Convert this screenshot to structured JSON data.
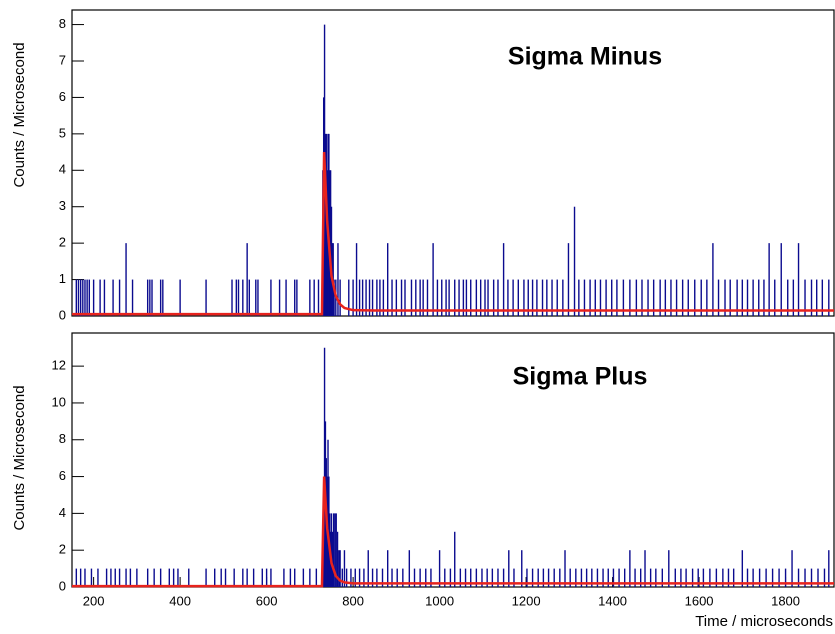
{
  "chart_data": [
    {
      "type": "bar",
      "title": "Sigma Minus",
      "y_label": "Counts / Microsecond",
      "xlim": [
        150,
        1912
      ],
      "ylim": [
        0,
        8.4
      ],
      "yticks": [
        0,
        1,
        2,
        3,
        4,
        5,
        6,
        7,
        8
      ],
      "color": "#0b0b8f",
      "x": [
        160,
        165,
        170,
        175,
        180,
        185,
        190,
        200,
        215,
        225,
        245,
        260,
        275,
        290,
        325,
        330,
        335,
        355,
        360,
        400,
        460,
        520,
        530,
        535,
        545,
        555,
        560,
        575,
        580,
        610,
        630,
        645,
        665,
        670,
        700,
        710,
        720,
        730,
        732,
        734,
        736,
        738,
        740,
        742,
        744,
        746,
        748,
        750,
        752,
        754,
        756,
        760,
        765,
        770,
        790,
        800,
        808,
        815,
        822,
        830,
        838,
        845,
        855,
        862,
        870,
        880,
        890,
        900,
        912,
        920,
        935,
        945,
        955,
        962,
        972,
        985,
        995,
        1005,
        1015,
        1022,
        1035,
        1045,
        1055,
        1062,
        1072,
        1085,
        1095,
        1105,
        1112,
        1125,
        1135,
        1148,
        1158,
        1170,
        1182,
        1195,
        1205,
        1215,
        1225,
        1238,
        1248,
        1260,
        1272,
        1285,
        1298,
        1312,
        1322,
        1335,
        1348,
        1360,
        1372,
        1385,
        1398,
        1410,
        1425,
        1440,
        1455,
        1468,
        1482,
        1495,
        1510,
        1522,
        1535,
        1548,
        1562,
        1575,
        1590,
        1605,
        1618,
        1632,
        1645,
        1660,
        1672,
        1688,
        1700,
        1712,
        1725,
        1738,
        1750,
        1762,
        1775,
        1790,
        1805,
        1818,
        1830,
        1845,
        1860,
        1872,
        1885,
        1900
      ],
      "values": [
        1,
        1,
        1,
        1,
        1,
        1,
        1,
        1,
        1,
        1,
        1,
        1,
        2,
        1,
        1,
        1,
        1,
        1,
        1,
        1,
        1,
        1,
        1,
        1,
        1,
        2,
        1,
        1,
        1,
        1,
        1,
        1,
        1,
        1,
        1,
        1,
        1,
        4,
        6,
        8,
        5,
        5,
        4,
        5,
        5,
        4,
        4,
        3,
        2,
        2,
        1,
        1,
        2,
        1,
        1,
        1,
        2,
        1,
        1,
        1,
        1,
        1,
        1,
        1,
        1,
        2,
        1,
        1,
        1,
        1,
        1,
        1,
        1,
        1,
        1,
        2,
        1,
        1,
        1,
        1,
        1,
        1,
        1,
        1,
        1,
        1,
        1,
        1,
        1,
        1,
        1,
        2,
        1,
        1,
        1,
        1,
        1,
        1,
        1,
        1,
        1,
        1,
        1,
        1,
        2,
        3,
        1,
        1,
        1,
        1,
        1,
        1,
        1,
        1,
        1,
        1,
        1,
        1,
        1,
        1,
        1,
        1,
        1,
        1,
        1,
        1,
        1,
        1,
        1,
        2,
        1,
        1,
        1,
        1,
        1,
        1,
        1,
        1,
        1,
        2,
        1,
        2,
        1,
        1,
        2,
        1,
        1,
        1,
        1,
        1
      ],
      "fit": {
        "color": "#e8231d",
        "x": [
          150,
          727,
          728,
          733,
          740,
          750,
          760,
          770,
          780,
          800,
          850,
          1000,
          1912
        ],
        "values": [
          0.05,
          0.05,
          0.05,
          4.5,
          2.6,
          1.1,
          0.55,
          0.32,
          0.22,
          0.16,
          0.15,
          0.15,
          0.15
        ]
      }
    },
    {
      "type": "bar",
      "title": "Sigma Plus",
      "y_label": "Counts / Microsecond",
      "x_label": "Time / microseconds",
      "xlim": [
        150,
        1912
      ],
      "ylim": [
        0,
        13.8
      ],
      "yticks": [
        0,
        2,
        4,
        6,
        8,
        10,
        12
      ],
      "xticks": [
        200,
        400,
        600,
        800,
        1000,
        1200,
        1400,
        1600,
        1800
      ],
      "color": "#0b0b8f",
      "x": [
        160,
        170,
        180,
        195,
        210,
        230,
        240,
        250,
        260,
        275,
        285,
        300,
        325,
        340,
        355,
        375,
        385,
        395,
        420,
        460,
        480,
        495,
        505,
        525,
        545,
        555,
        570,
        590,
        600,
        610,
        640,
        655,
        665,
        685,
        700,
        715,
        732,
        734,
        736,
        738,
        740,
        742,
        744,
        746,
        748,
        750,
        752,
        755,
        758,
        761,
        764,
        767,
        770,
        775,
        780,
        785,
        795,
        805,
        815,
        825,
        835,
        845,
        855,
        868,
        880,
        890,
        902,
        915,
        930,
        942,
        955,
        968,
        980,
        1000,
        1012,
        1025,
        1035,
        1048,
        1060,
        1072,
        1085,
        1098,
        1110,
        1122,
        1135,
        1148,
        1160,
        1172,
        1190,
        1202,
        1215,
        1228,
        1240,
        1252,
        1265,
        1278,
        1290,
        1302,
        1315,
        1328,
        1340,
        1352,
        1365,
        1378,
        1390,
        1402,
        1415,
        1428,
        1440,
        1452,
        1465,
        1475,
        1488,
        1500,
        1515,
        1530,
        1545,
        1558,
        1570,
        1585,
        1598,
        1610,
        1625,
        1640,
        1655,
        1668,
        1680,
        1700,
        1712,
        1725,
        1740,
        1755,
        1770,
        1785,
        1800,
        1815,
        1830,
        1845,
        1860,
        1875,
        1890,
        1900
      ],
      "values": [
        1,
        1,
        1,
        1,
        1,
        1,
        1,
        1,
        1,
        1,
        1,
        1,
        1,
        1,
        1,
        1,
        1,
        1,
        1,
        1,
        1,
        1,
        1,
        1,
        1,
        1,
        1,
        1,
        1,
        1,
        1,
        1,
        1,
        1,
        1,
        1,
        6,
        13,
        9,
        7,
        6,
        8,
        6,
        4,
        3,
        4,
        3,
        4,
        4,
        4,
        3,
        2,
        2,
        1,
        2,
        1,
        1,
        1,
        1,
        1,
        2,
        1,
        1,
        1,
        2,
        1,
        1,
        1,
        2,
        1,
        1,
        1,
        1,
        2,
        1,
        1,
        3,
        1,
        1,
        1,
        1,
        1,
        1,
        1,
        1,
        1,
        2,
        1,
        2,
        1,
        1,
        1,
        1,
        1,
        1,
        1,
        2,
        1,
        1,
        1,
        1,
        1,
        1,
        1,
        1,
        1,
        1,
        1,
        2,
        1,
        1,
        2,
        1,
        1,
        1,
        2,
        1,
        1,
        1,
        1,
        1,
        1,
        1,
        1,
        1,
        1,
        1,
        2,
        1,
        1,
        1,
        1,
        1,
        1,
        1,
        2,
        1,
        1,
        1,
        1,
        1,
        2
      ],
      "fit": {
        "color": "#e8231d",
        "x": [
          150,
          727,
          728,
          733,
          740,
          750,
          760,
          770,
          780,
          800,
          850,
          1000,
          1912
        ],
        "values": [
          0.05,
          0.05,
          0.05,
          6,
          3.2,
          1.3,
          0.6,
          0.35,
          0.25,
          0.2,
          0.2,
          0.2,
          0.2
        ]
      }
    }
  ]
}
